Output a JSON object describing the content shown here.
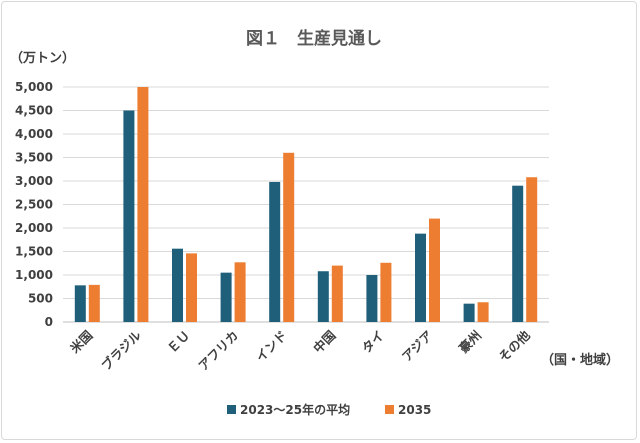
{
  "chart_data": {
    "type": "bar",
    "title": "図１　生産見通し",
    "ylabel": "（万トン）",
    "xlabel": "（国・地域）",
    "ylim": [
      0,
      5000
    ],
    "ytick_step": 500,
    "ytick_labels": [
      "0",
      "500",
      "1,000",
      "1,500",
      "2,000",
      "2,500",
      "3,000",
      "3,500",
      "4,000",
      "4,500",
      "5,000"
    ],
    "grid": true,
    "legend_position": "bottom",
    "categories": [
      "米国",
      "ブラジル",
      "ＥＵ",
      "アフリカ",
      "インド",
      "中国",
      "タイ",
      "アジア",
      "豪州",
      "その他"
    ],
    "series": [
      {
        "name": "2023～25年の平均",
        "color": "#1f5f7a",
        "values": [
          780,
          4500,
          1560,
          1050,
          2980,
          1080,
          1000,
          1880,
          390,
          2900
        ]
      },
      {
        "name": "2035",
        "color": "#ed7d31",
        "values": [
          790,
          5000,
          1460,
          1270,
          3600,
          1200,
          1260,
          2200,
          420,
          3080
        ]
      }
    ]
  }
}
